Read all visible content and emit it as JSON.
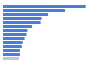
{
  "chart_data": {
    "type": "bar",
    "orientation": "horizontal",
    "categories": [
      null,
      null,
      null,
      null,
      null,
      null,
      null,
      null,
      null,
      null,
      null,
      null,
      null,
      null
    ],
    "values": [
      88,
      66,
      48,
      41,
      40,
      31,
      26,
      25,
      23,
      21,
      20,
      18,
      18,
      17
    ],
    "colors": [
      "#4a7ed8",
      "#4a7ed8",
      "#4a7ed8",
      "#4a7ed8",
      "#4a7ed8",
      "#4a7ed8",
      "#4a7ed8",
      "#4a7ed8",
      "#4a7ed8",
      "#4a7ed8",
      "#4a7ed8",
      "#4a7ed8",
      "#4a7ed8",
      "#b9c7e2"
    ],
    "xlim": [
      0,
      100
    ],
    "grid": false,
    "tick_labels": false
  }
}
